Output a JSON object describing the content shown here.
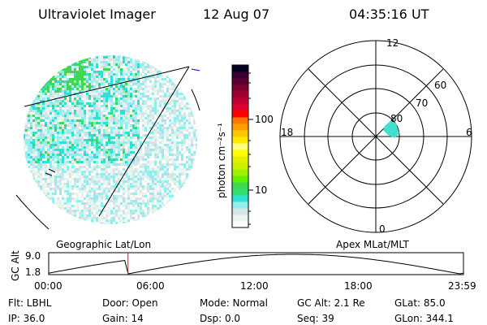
{
  "header": {
    "instrument": "Ultraviolet Imager",
    "date": "12 Aug 07",
    "time": "04:35:16 UT"
  },
  "colorbar": {
    "label": "photon cm⁻²s⁻¹",
    "ticks": [
      "100",
      "10"
    ],
    "colors": [
      "#ffffff",
      "#e8f4ee",
      "#d4e6e6",
      "#90eef0",
      "#30e0d4",
      "#30e070",
      "#40d850",
      "#60f000",
      "#a0f000",
      "#c8f000",
      "#e8f000",
      "#ffff00",
      "#ffff80",
      "#ffe800",
      "#ffc800",
      "#ffa000",
      "#ff7800",
      "#ff0000",
      "#e00030",
      "#c00030",
      "#a00030",
      "#800030",
      "#5a0030",
      "#3a0030",
      "#000020"
    ]
  },
  "polar": {
    "labels": {
      "top": "12",
      "bottom": "0",
      "left": "18",
      "right": "6"
    },
    "rings": [
      "80",
      "70",
      "60"
    ]
  },
  "timeline": {
    "left_title": "Geographic Lat/Lon",
    "right_title": "Apex MLat/MLT",
    "ylabel": "GC Alt",
    "yticks": [
      "9.0",
      "1.8"
    ],
    "xticks": [
      "00:00",
      "06:00",
      "12:00",
      "18:00",
      "23:59"
    ],
    "marker_hour": 4.59
  },
  "info": [
    [
      "Flt: LBHL",
      "Door: Open",
      "Mode: Normal",
      "GC Alt: 2.1 Re",
      "GLat:  85.0"
    ],
    [
      "IP: 36.0",
      "Gain: 14",
      "Dsp:     0.0",
      "Seq: 39",
      "GLon: 344.1"
    ]
  ]
}
